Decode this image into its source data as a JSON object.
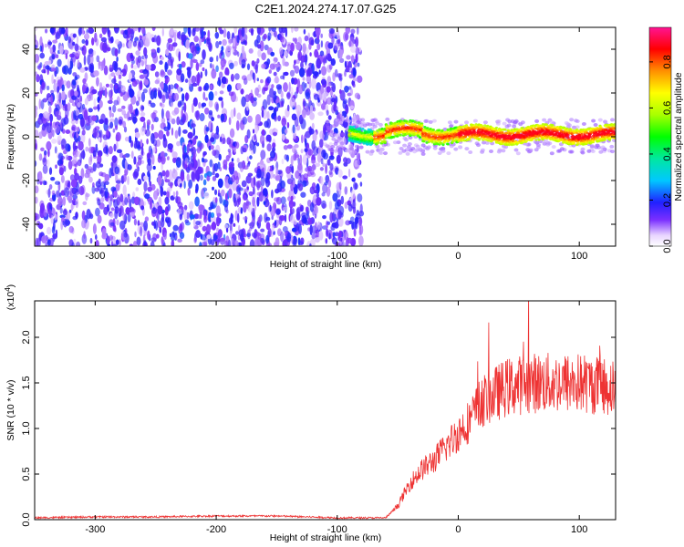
{
  "title": "C2E1.2024.274.17.07.G25",
  "chart_data": [
    {
      "type": "heatmap",
      "xlabel": "Height of straight line (km)",
      "ylabel": "Frequency (Hz)",
      "xlim": [
        -350,
        130
      ],
      "ylim": [
        -50,
        50
      ],
      "xticks": [
        -300,
        -200,
        -100,
        0,
        100
      ],
      "yticks": [
        -40,
        -20,
        0,
        20,
        40
      ],
      "colorbar": {
        "label": "Normalized spectral amplitude",
        "range": [
          0,
          0.95
        ],
        "ticks": [
          0.0,
          0.2,
          0.4,
          0.6,
          0.8
        ]
      },
      "description_regions": [
        {
          "x_range": [
            -350,
            -80
          ],
          "f_range": [
            -50,
            50
          ],
          "amplitude": [
            0.0,
            0.25
          ]
        },
        {
          "x_range": [
            -90,
            130
          ],
          "f_range": [
            -5,
            5
          ],
          "amplitude": [
            0.2,
            0.95
          ],
          "center_hz": 1
        }
      ]
    },
    {
      "type": "line",
      "xlabel": "Height of straight line (km)",
      "ylabel": "SNR (10 * v/v)",
      "ymultiplier": "(x10^4)",
      "xlim": [
        -350,
        130
      ],
      "ylim": [
        0,
        2.4
      ],
      "xticks": [
        -300,
        -200,
        -100,
        0,
        100
      ],
      "yticks": [
        0.0,
        0.5,
        1.0,
        1.5,
        2.0
      ],
      "series": [
        {
          "color": "#ee3333",
          "x": [
            -350,
            -300,
            -250,
            -200,
            -150,
            -100,
            -60,
            -50,
            -40,
            -30,
            -20,
            -10,
            0,
            10,
            20,
            40,
            60,
            80,
            100,
            130
          ],
          "y": [
            0.02,
            0.03,
            0.03,
            0.04,
            0.04,
            0.02,
            0.02,
            0.15,
            0.4,
            0.55,
            0.65,
            0.8,
            0.95,
            1.1,
            1.3,
            1.45,
            1.5,
            1.5,
            1.5,
            1.45
          ]
        }
      ]
    }
  ]
}
